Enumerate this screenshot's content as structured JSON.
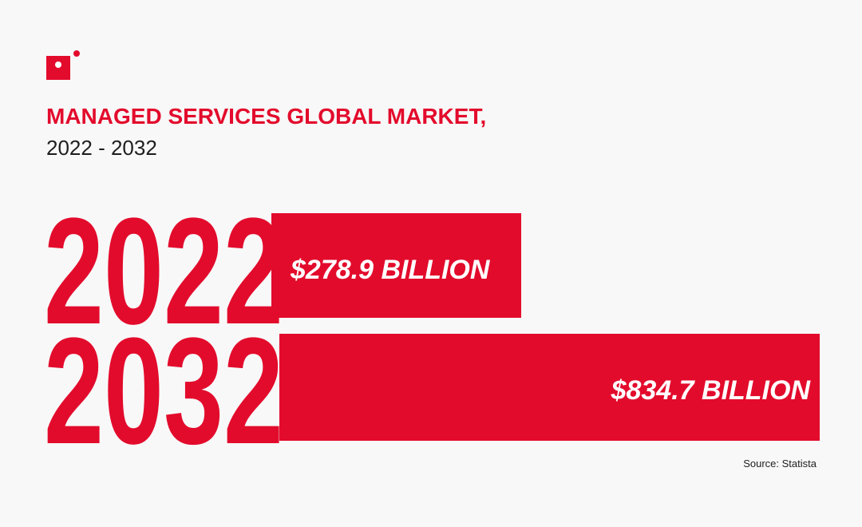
{
  "header": {
    "title": "MANAGED SERVICES GLOBAL MARKET,",
    "subtitle": "2022 - 2032"
  },
  "items": [
    {
      "year": "2022",
      "value": "$278.9 BILLION"
    },
    {
      "year": "2032",
      "value": "$834.7 BILLION"
    }
  ],
  "source": "Source: Statista"
}
